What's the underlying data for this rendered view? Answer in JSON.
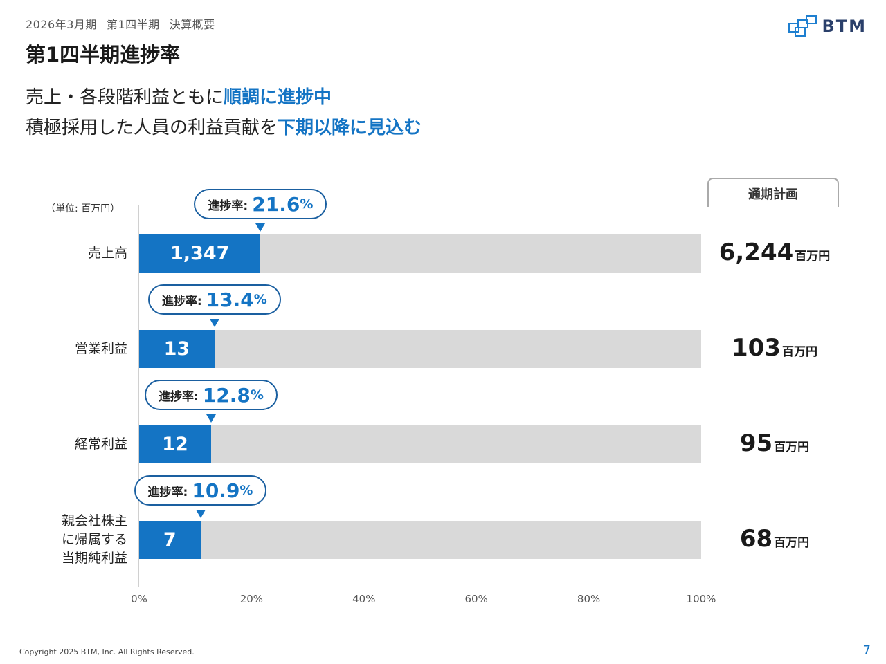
{
  "header": {
    "eyebrow": [
      "2026年3月期",
      "第1四半期",
      "決算概要"
    ],
    "title": "第1四半期進捗率",
    "logo_text": "BTM"
  },
  "lead": {
    "line1_plain": "売上・各段階利益ともに",
    "line1_highlight": "順調に進捗中",
    "line2_plain": "積極採用した人員の利益貢献を",
    "line2_highlight": "下期以降に見込む"
  },
  "colors": {
    "accent": "#1474c4",
    "bar_track": "#d9d9d9"
  },
  "chart_data": {
    "type": "bar",
    "orientation": "horizontal",
    "unit_note": "（単位: 百万円）",
    "plan_header": "通期計画",
    "progress_label": "進捗率:",
    "percent_sign": "%",
    "plan_unit": "百万円",
    "xlim": [
      0,
      100
    ],
    "x_ticks": [
      "0%",
      "20%",
      "40%",
      "60%",
      "80%",
      "100%"
    ],
    "grid": false,
    "categories": [
      {
        "label": "売上高",
        "value": "1,347",
        "progress": 21.6,
        "progress_text": "21.6",
        "plan": "6,244"
      },
      {
        "label": "営業利益",
        "value": "13",
        "progress": 13.4,
        "progress_text": "13.4",
        "plan": "103"
      },
      {
        "label": "経常利益",
        "value": "12",
        "progress": 12.8,
        "progress_text": "12.8",
        "plan": "95"
      },
      {
        "label": "親会社株主\nに帰属する\n当期純利益",
        "value": "7",
        "progress": 10.9,
        "progress_text": "10.9",
        "plan": "68"
      }
    ]
  },
  "footer": {
    "copyright": "Copyright 2025 BTM, Inc. All Rights Reserved.",
    "page_number": "7"
  }
}
